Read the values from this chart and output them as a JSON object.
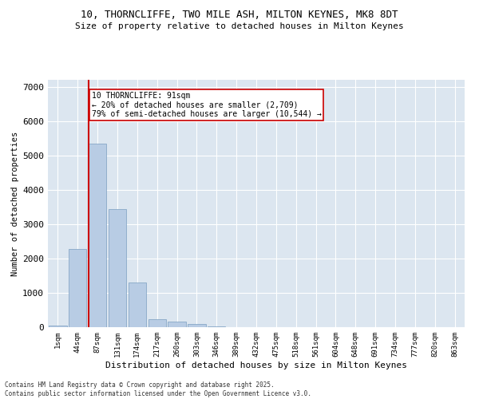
{
  "title_line1": "10, THORNCLIFFE, TWO MILE ASH, MILTON KEYNES, MK8 8DT",
  "title_line2": "Size of property relative to detached houses in Milton Keynes",
  "xlabel": "Distribution of detached houses by size in Milton Keynes",
  "ylabel": "Number of detached properties",
  "categories": [
    "1sqm",
    "44sqm",
    "87sqm",
    "131sqm",
    "174sqm",
    "217sqm",
    "260sqm",
    "303sqm",
    "346sqm",
    "389sqm",
    "432sqm",
    "475sqm",
    "518sqm",
    "561sqm",
    "604sqm",
    "648sqm",
    "691sqm",
    "734sqm",
    "777sqm",
    "820sqm",
    "863sqm"
  ],
  "values": [
    55,
    2280,
    5350,
    3430,
    1300,
    230,
    155,
    85,
    25,
    8,
    3,
    1,
    0,
    0,
    0,
    0,
    0,
    0,
    0,
    0,
    0
  ],
  "bar_color": "#b8cce4",
  "bar_edge_color": "#7a9ec0",
  "vline_x_index": 2,
  "vline_color": "#cc0000",
  "annotation_text": "10 THORNCLIFFE: 91sqm\n← 20% of detached houses are smaller (2,709)\n79% of semi-detached houses are larger (10,544) →",
  "annotation_box_color": "#ffffff",
  "annotation_box_edge": "#cc0000",
  "ylim": [
    0,
    7200
  ],
  "yticks": [
    0,
    1000,
    2000,
    3000,
    4000,
    5000,
    6000,
    7000
  ],
  "background_color": "#dce6f0",
  "footer_line1": "Contains HM Land Registry data © Crown copyright and database right 2025.",
  "footer_line2": "Contains public sector information licensed under the Open Government Licence v3.0."
}
